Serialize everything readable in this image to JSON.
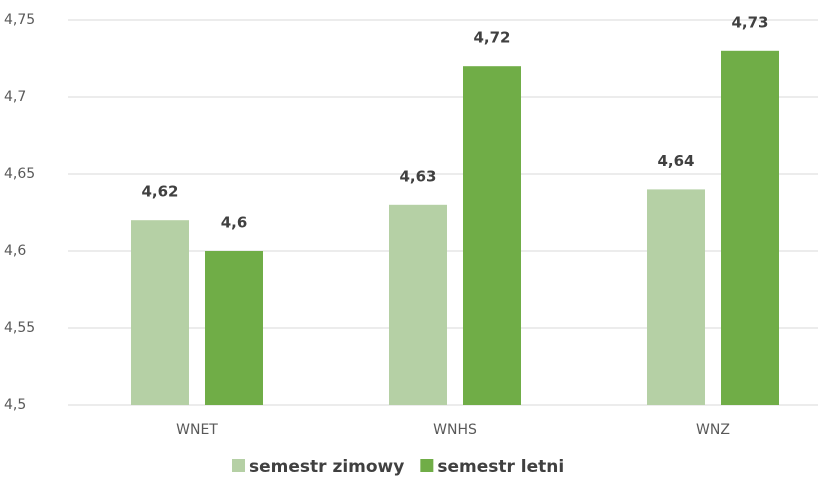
{
  "chart_data": {
    "type": "bar",
    "categories": [
      "WNET",
      "WNHS",
      "WNZ"
    ],
    "series": [
      {
        "name": "semestr zimowy",
        "color": "#b5d0a5",
        "values": [
          4.62,
          4.63,
          4.64
        ],
        "value_labels": [
          "4,62",
          "4,63",
          "4,64"
        ]
      },
      {
        "name": "semestr letni",
        "color": "#70ad47",
        "values": [
          4.6,
          4.72,
          4.73
        ],
        "value_labels": [
          "4,6",
          "4,72",
          "4,73"
        ]
      }
    ],
    "ylim": [
      4.5,
      4.75
    ],
    "yticks": [
      {
        "value": 4.5,
        "label": "4,5"
      },
      {
        "value": 4.55,
        "label": "4,55"
      },
      {
        "value": 4.6,
        "label": "4,6"
      },
      {
        "value": 4.65,
        "label": "4,65"
      },
      {
        "value": 4.7,
        "label": "4,7"
      },
      {
        "value": 4.75,
        "label": "4,75"
      }
    ],
    "grid": true,
    "legend": "bottom"
  }
}
